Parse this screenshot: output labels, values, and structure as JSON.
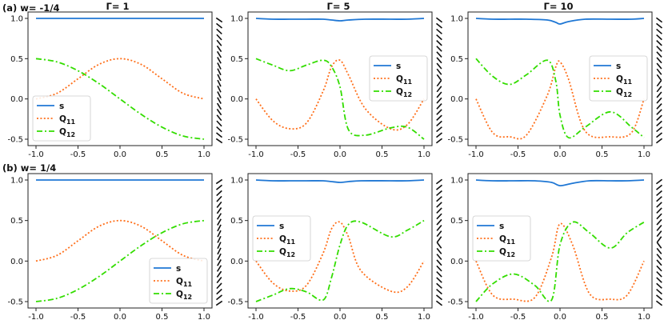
{
  "figure": {
    "row_labels": [
      "(a) w= -1/4",
      "(b) w= 1/4"
    ],
    "column_titles": [
      "Γ= 1",
      "Γ= 5",
      "Γ= 10"
    ]
  },
  "colors": {
    "s": "#1f77d4",
    "Q11": "#ff6f1a",
    "Q12": "#33dd00"
  },
  "chart_data": [
    {
      "type": "line",
      "row": 0,
      "col": 0,
      "title": "Γ= 1",
      "xlim": [
        -1.0,
        1.0
      ],
      "ylim": [
        -0.5,
        1.0
      ],
      "xticks": [
        "-1.0",
        "-0.5",
        "0.0",
        "0.5",
        "1.0"
      ],
      "yticks": [
        "1.0",
        "0.5",
        "0.0",
        "-0.5"
      ],
      "legend": "lower-left",
      "x": [
        -1.0,
        -0.75,
        -0.5,
        -0.25,
        0.0,
        0.25,
        0.5,
        0.75,
        1.0
      ],
      "series": [
        {
          "name": "s",
          "label": "s",
          "sub": "",
          "style": "solid",
          "values": [
            1.0,
            1.0,
            1.0,
            1.0,
            1.0,
            1.0,
            1.0,
            1.0,
            1.0
          ]
        },
        {
          "name": "Q11",
          "label": "Q",
          "sub": "11",
          "style": "dotted",
          "values": [
            0.0,
            0.07,
            0.25,
            0.43,
            0.5,
            0.43,
            0.25,
            0.07,
            0.0
          ]
        },
        {
          "name": "Q12",
          "label": "Q",
          "sub": "12",
          "style": "dashdot",
          "values": [
            0.5,
            0.46,
            0.35,
            0.19,
            0.0,
            -0.19,
            -0.35,
            -0.46,
            -0.5
          ]
        }
      ]
    },
    {
      "type": "line",
      "row": 0,
      "col": 1,
      "title": "Γ= 5",
      "xlim": [
        -1.0,
        1.0
      ],
      "ylim": [
        -0.5,
        1.0
      ],
      "xticks": [
        "-1.0",
        "-0.5",
        "0.0",
        "0.5",
        "1.0"
      ],
      "yticks": [
        "1.0",
        "0.5",
        "0.0",
        "-0.5"
      ],
      "legend": "top-right",
      "x": [
        -1.0,
        -0.8,
        -0.6,
        -0.4,
        -0.2,
        -0.1,
        0.0,
        0.1,
        0.3,
        0.6,
        0.8,
        1.0
      ],
      "series": [
        {
          "name": "s",
          "label": "s",
          "sub": "",
          "style": "solid",
          "values": [
            1.0,
            0.99,
            0.99,
            0.99,
            0.99,
            0.98,
            0.97,
            0.98,
            0.99,
            0.99,
            0.99,
            1.0
          ]
        },
        {
          "name": "Q11",
          "label": "Q",
          "sub": "11",
          "style": "dotted",
          "values": [
            0.0,
            -0.27,
            -0.37,
            -0.3,
            0.1,
            0.4,
            0.48,
            0.3,
            -0.12,
            -0.37,
            -0.32,
            0.0
          ]
        },
        {
          "name": "Q12",
          "label": "Q",
          "sub": "12",
          "style": "dashdot",
          "values": [
            0.5,
            0.42,
            0.35,
            0.42,
            0.48,
            0.4,
            0.15,
            -0.38,
            -0.45,
            -0.36,
            -0.35,
            -0.5
          ]
        }
      ]
    },
    {
      "type": "line",
      "row": 0,
      "col": 2,
      "title": "Γ= 10",
      "xlim": [
        -1.0,
        1.0
      ],
      "ylim": [
        -0.5,
        1.0
      ],
      "xticks": [
        "-1.0",
        "-0.5",
        "0.0",
        "0.5",
        "1.0"
      ],
      "yticks": [
        "1.0",
        "0.5",
        "0.0",
        "-0.5"
      ],
      "legend": "top-right",
      "x": [
        -1.0,
        -0.8,
        -0.6,
        -0.4,
        -0.15,
        -0.05,
        0.0,
        0.1,
        0.3,
        0.6,
        0.85,
        1.0
      ],
      "series": [
        {
          "name": "s",
          "label": "s",
          "sub": "",
          "style": "solid",
          "values": [
            1.0,
            0.99,
            0.99,
            0.99,
            0.98,
            0.95,
            0.93,
            0.96,
            0.99,
            0.99,
            0.99,
            1.0
          ]
        },
        {
          "name": "Q11",
          "label": "Q",
          "sub": "11",
          "style": "dotted",
          "values": [
            0.0,
            -0.42,
            -0.47,
            -0.45,
            0.05,
            0.4,
            0.46,
            0.25,
            -0.4,
            -0.47,
            -0.42,
            0.0
          ]
        },
        {
          "name": "Q12",
          "label": "Q",
          "sub": "12",
          "style": "dashdot",
          "values": [
            0.5,
            0.28,
            0.18,
            0.3,
            0.48,
            0.22,
            -0.2,
            -0.48,
            -0.35,
            -0.16,
            -0.35,
            -0.48
          ]
        }
      ]
    },
    {
      "type": "line",
      "row": 1,
      "col": 0,
      "title": "",
      "xlim": [
        -1.0,
        1.0
      ],
      "ylim": [
        -0.5,
        1.0
      ],
      "xticks": [
        "-1.0",
        "-0.5",
        "0.0",
        "0.5",
        "1.0"
      ],
      "yticks": [
        "1.0",
        "0.5",
        "0.0",
        "-0.5"
      ],
      "legend": "lower-right",
      "x": [
        -1.0,
        -0.75,
        -0.5,
        -0.25,
        0.0,
        0.25,
        0.5,
        0.75,
        1.0
      ],
      "series": [
        {
          "name": "s",
          "label": "s",
          "sub": "",
          "style": "solid",
          "values": [
            1.0,
            1.0,
            1.0,
            1.0,
            1.0,
            1.0,
            1.0,
            1.0,
            1.0
          ]
        },
        {
          "name": "Q11",
          "label": "Q",
          "sub": "11",
          "style": "dotted",
          "values": [
            0.0,
            0.07,
            0.25,
            0.43,
            0.5,
            0.43,
            0.25,
            0.07,
            0.0
          ]
        },
        {
          "name": "Q12",
          "label": "Q",
          "sub": "12",
          "style": "dashdot",
          "values": [
            -0.5,
            -0.46,
            -0.35,
            -0.19,
            0.0,
            0.19,
            0.35,
            0.46,
            0.5
          ]
        }
      ]
    },
    {
      "type": "line",
      "row": 1,
      "col": 1,
      "title": "",
      "xlim": [
        -1.0,
        1.0
      ],
      "ylim": [
        -0.5,
        1.0
      ],
      "xticks": [
        "-1.0",
        "-0.5",
        "0.0",
        "0.5",
        "1.0"
      ],
      "yticks": [
        "1.0",
        "0.5",
        "0.0",
        "-0.5"
      ],
      "legend": "middle-left",
      "x": [
        -1.0,
        -0.8,
        -0.6,
        -0.4,
        -0.2,
        -0.1,
        0.0,
        0.1,
        0.25,
        0.6,
        0.8,
        1.0
      ],
      "series": [
        {
          "name": "s",
          "label": "s",
          "sub": "",
          "style": "solid",
          "values": [
            1.0,
            0.99,
            0.99,
            0.99,
            0.99,
            0.98,
            0.97,
            0.98,
            0.99,
            0.99,
            0.99,
            1.0
          ]
        },
        {
          "name": "Q11",
          "label": "Q",
          "sub": "11",
          "style": "dotted",
          "values": [
            0.0,
            -0.27,
            -0.37,
            -0.3,
            0.1,
            0.4,
            0.48,
            0.3,
            -0.12,
            -0.37,
            -0.32,
            0.0
          ]
        },
        {
          "name": "Q12",
          "label": "Q",
          "sub": "12",
          "style": "dashdot",
          "values": [
            -0.5,
            -0.42,
            -0.34,
            -0.38,
            -0.48,
            -0.2,
            0.2,
            0.45,
            0.48,
            0.3,
            0.38,
            0.5
          ]
        }
      ]
    },
    {
      "type": "line",
      "row": 1,
      "col": 2,
      "title": "",
      "xlim": [
        -1.0,
        1.0
      ],
      "ylim": [
        -0.5,
        1.0
      ],
      "xticks": [
        "-1.0",
        "-0.5",
        "0.0",
        "0.5",
        "1.0"
      ],
      "yticks": [
        "1.0",
        "0.5",
        "0.0",
        "-0.5"
      ],
      "legend": "middle-left",
      "x": [
        -1.0,
        -0.8,
        -0.55,
        -0.3,
        -0.1,
        0.0,
        0.15,
        0.35,
        0.6,
        0.8,
        1.0
      ],
      "series": [
        {
          "name": "s",
          "label": "s",
          "sub": "",
          "style": "solid",
          "values": [
            1.0,
            0.99,
            0.99,
            0.99,
            0.97,
            0.93,
            0.96,
            0.99,
            0.99,
            0.99,
            1.0
          ]
        },
        {
          "name": "Q11",
          "label": "Q",
          "sub": "11",
          "style": "dotted",
          "values": [
            0.0,
            -0.42,
            -0.47,
            -0.45,
            0.05,
            0.46,
            0.2,
            -0.4,
            -0.47,
            -0.42,
            0.0
          ]
        },
        {
          "name": "Q12",
          "label": "Q",
          "sub": "12",
          "style": "dashdot",
          "values": [
            -0.5,
            -0.28,
            -0.16,
            -0.3,
            -0.48,
            0.2,
            0.48,
            0.35,
            0.16,
            0.35,
            0.48
          ]
        }
      ]
    }
  ]
}
